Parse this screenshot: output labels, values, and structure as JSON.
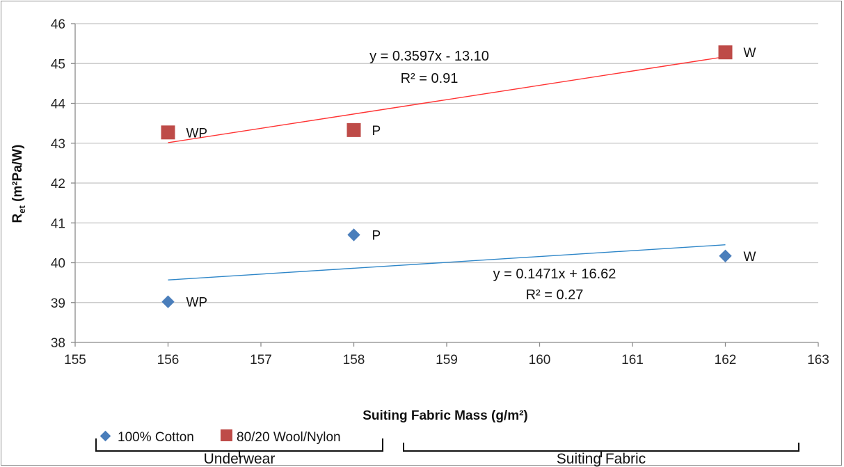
{
  "chart_data": {
    "type": "scatter",
    "xlabel": "Suiting Fabric Mass (g/m²)",
    "ylabel_main": "R",
    "ylabel_sub": "et",
    "ylabel_rest": " (m²Pa/W)",
    "xlim": [
      155,
      163
    ],
    "ylim": [
      38,
      46
    ],
    "x_ticks": [
      "155",
      "156",
      "157",
      "158",
      "159",
      "160",
      "161",
      "162",
      "163"
    ],
    "y_ticks": [
      "38",
      "39",
      "40",
      "41",
      "42",
      "43",
      "44",
      "45",
      "46"
    ],
    "grid": "horizontal",
    "legend_position": "bottom-left",
    "series": [
      {
        "name": "100% Cotton",
        "color": "#4a7ebb",
        "marker": "diamond",
        "points": [
          {
            "x": 156,
            "y": 39.02,
            "label": "WP"
          },
          {
            "x": 158,
            "y": 40.7,
            "label": "P"
          },
          {
            "x": 162,
            "y": 40.17,
            "label": "W"
          }
        ],
        "trendline": {
          "slope": 0.1471,
          "intercept": 16.62,
          "color": "#2e86c8",
          "equation": "y = 0.1471x + 16.62",
          "r2": "R² = 0.27"
        }
      },
      {
        "name": "80/20 Wool/Nylon",
        "color": "#be4b48",
        "marker": "square",
        "points": [
          {
            "x": 156,
            "y": 43.27,
            "label": "WP"
          },
          {
            "x": 158,
            "y": 43.33,
            "label": "P"
          },
          {
            "x": 162,
            "y": 45.28,
            "label": "W"
          }
        ],
        "trendline": {
          "slope": 0.3597,
          "intercept": -13.1,
          "color": "#ff3333",
          "equation": "y = 0.3597x - 13.10",
          "r2": "R² = 0.91"
        }
      }
    ],
    "groups": [
      {
        "label": "Underwear"
      },
      {
        "label": "Suiting Fabric"
      }
    ]
  }
}
